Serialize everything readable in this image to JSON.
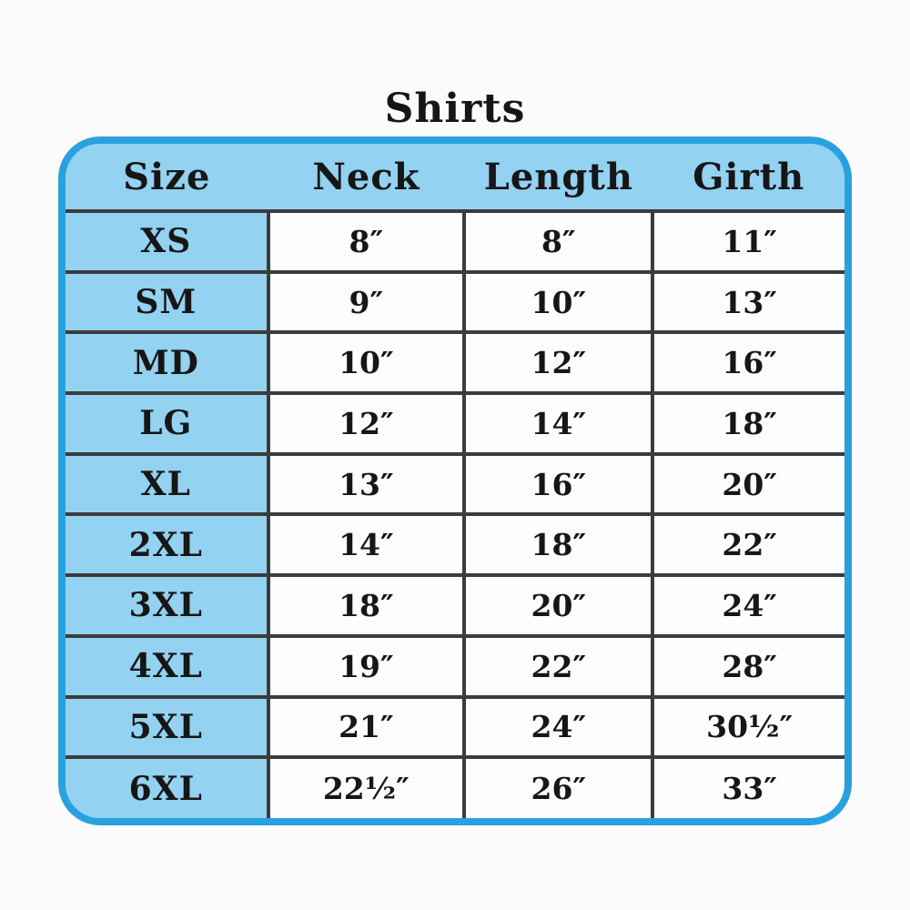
{
  "colors": {
    "frame_blue": "#2aa1df",
    "cell_blue": "#93d2f0",
    "line_dark": "#3c3c3c",
    "text": "#161616",
    "background": "#fbfbfb",
    "cell_white": "#fdfdfd"
  },
  "chart_data": {
    "type": "table",
    "title": "Shirts",
    "columns": [
      "Size",
      "Neck",
      "Length",
      "Girth"
    ],
    "rows": [
      [
        "XS",
        "8″",
        "8″",
        "11″"
      ],
      [
        "SM",
        "9″",
        "10″",
        "13″"
      ],
      [
        "MD",
        "10″",
        "12″",
        "16″"
      ],
      [
        "LG",
        "12″",
        "14″",
        "18″"
      ],
      [
        "XL",
        "13″",
        "16″",
        "20″"
      ],
      [
        "2XL",
        "14″",
        "18″",
        "22″"
      ],
      [
        "3XL",
        "18″",
        "20″",
        "24″"
      ],
      [
        "4XL",
        "19″",
        "22″",
        "28″"
      ],
      [
        "5XL",
        "21″",
        "24″",
        "30½″"
      ],
      [
        "6XL",
        "22½″",
        "26″",
        "33″"
      ]
    ]
  }
}
